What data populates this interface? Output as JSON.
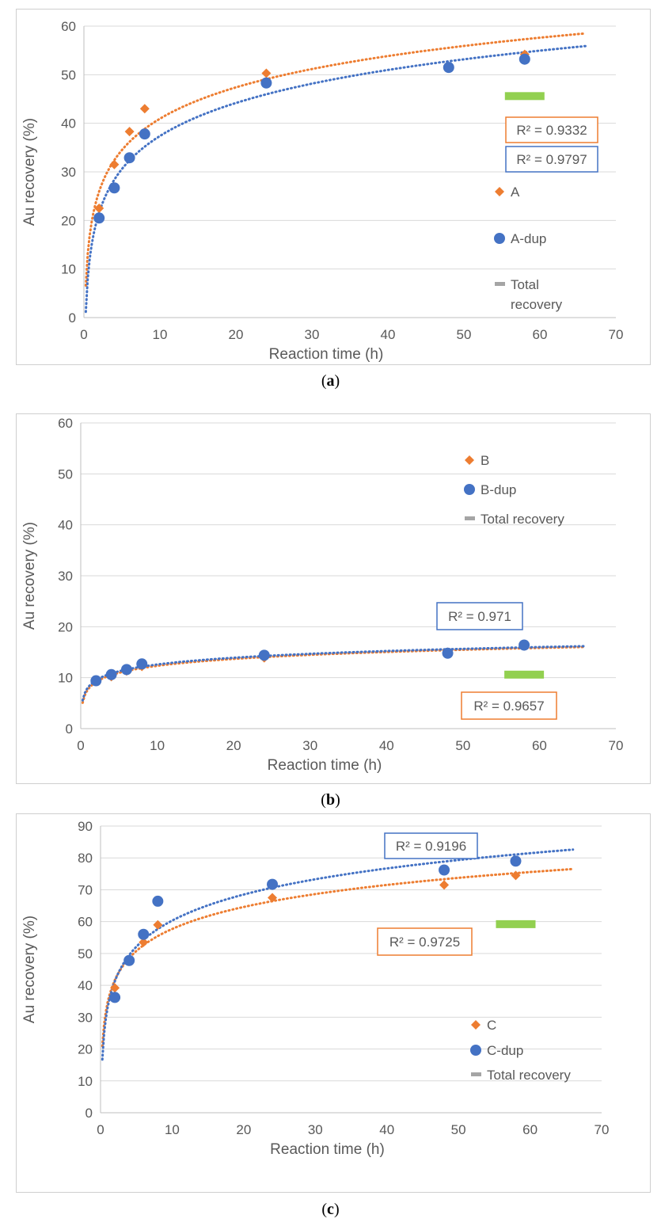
{
  "colors": {
    "orange": "#ED7D31",
    "blue": "#4472C4",
    "green": "#92D050",
    "gray": "#A5A5A5",
    "grid": "#D9D9D9",
    "text": "#595959"
  },
  "captions": {
    "a": "a",
    "b": "b",
    "c": "c"
  },
  "chart_data": [
    {
      "type": "scatter",
      "xlabel": "Reaction time (h)",
      "ylabel": "Au recovery (%)",
      "xlim": [
        0,
        70
      ],
      "ylim": [
        0,
        60
      ],
      "xticks": [
        0,
        10,
        20,
        30,
        40,
        50,
        60,
        70
      ],
      "yticks": [
        0,
        10,
        20,
        30,
        40,
        50,
        60
      ],
      "grid": "horizontal",
      "legend_position": "right",
      "series": [
        {
          "name": "A",
          "marker": "diamond",
          "color": "#ED7D31",
          "x": [
            2,
            4,
            6,
            8,
            24,
            58
          ],
          "y": [
            22.5,
            31.5,
            38.3,
            43,
            50.3,
            54.2
          ],
          "trendline": {
            "type": "log",
            "r2_label": "R² = 0.9332"
          }
        },
        {
          "name": "A-dup",
          "marker": "circle",
          "color": "#4472C4",
          "x": [
            2,
            4,
            6,
            8,
            24,
            48,
            58
          ],
          "y": [
            20.5,
            26.7,
            32.9,
            37.8,
            48.3,
            51.5,
            53.2
          ],
          "trendline": {
            "type": "log",
            "r2_label": "R² = 0.9797"
          }
        },
        {
          "name": "Total recovery",
          "marker": "bar",
          "color": "#92D050",
          "x": [
            58
          ],
          "y": [
            45.6
          ]
        }
      ]
    },
    {
      "type": "scatter",
      "xlabel": "Reaction time (h)",
      "ylabel": "Au recovery (%)",
      "xlim": [
        0,
        70
      ],
      "ylim": [
        0,
        60
      ],
      "xticks": [
        0,
        10,
        20,
        30,
        40,
        50,
        60,
        70
      ],
      "yticks": [
        0,
        10,
        20,
        30,
        40,
        50,
        60
      ],
      "grid": "horizontal",
      "legend_position": "top-right",
      "series": [
        {
          "name": "B",
          "marker": "diamond",
          "color": "#ED7D31",
          "x": [
            2,
            4,
            6,
            8,
            24,
            48,
            58
          ],
          "y": [
            9.3,
            10.2,
            11.3,
            12.2,
            13.9,
            15.0,
            16.2
          ],
          "trendline": {
            "type": "log",
            "r2_label": "R² = 0.9657"
          }
        },
        {
          "name": "B-dup",
          "marker": "circle",
          "color": "#4472C4",
          "x": [
            2,
            4,
            6,
            8,
            24,
            48,
            58
          ],
          "y": [
            9.4,
            10.6,
            11.6,
            12.7,
            14.4,
            14.8,
            16.4
          ],
          "trendline": {
            "type": "log",
            "r2_label": "R² = 0.971"
          }
        },
        {
          "name": "Total recovery",
          "marker": "bar",
          "color": "#92D050",
          "x": [
            58
          ],
          "y": [
            10.6
          ]
        }
      ]
    },
    {
      "type": "scatter",
      "xlabel": "Reaction time (h)",
      "ylabel": "Au recovery (%)",
      "xlim": [
        0,
        70
      ],
      "ylim": [
        0,
        90
      ],
      "xticks": [
        0,
        10,
        20,
        30,
        40,
        50,
        60,
        70
      ],
      "yticks": [
        0,
        10,
        20,
        30,
        40,
        50,
        60,
        70,
        80,
        90
      ],
      "grid": "horizontal",
      "legend_position": "bottom-right",
      "series": [
        {
          "name": "C",
          "marker": "diamond",
          "color": "#ED7D31",
          "x": [
            2,
            4,
            6,
            8,
            24,
            48,
            58
          ],
          "y": [
            39.2,
            48,
            53.5,
            59,
            67.5,
            71.5,
            74.5
          ],
          "trendline": {
            "type": "log",
            "r2_label": "R² = 0.9725"
          }
        },
        {
          "name": "C-dup",
          "marker": "circle",
          "color": "#4472C4",
          "x": [
            2,
            4,
            6,
            8,
            24,
            48,
            58
          ],
          "y": [
            36.2,
            47.8,
            56,
            66.4,
            71.7,
            76.2,
            79
          ],
          "trendline": {
            "type": "log",
            "r2_label": "R² = 0.9196"
          }
        },
        {
          "name": "Total recovery",
          "marker": "bar",
          "color": "#92D050",
          "x": [
            58
          ],
          "y": [
            59.2
          ]
        }
      ]
    }
  ]
}
